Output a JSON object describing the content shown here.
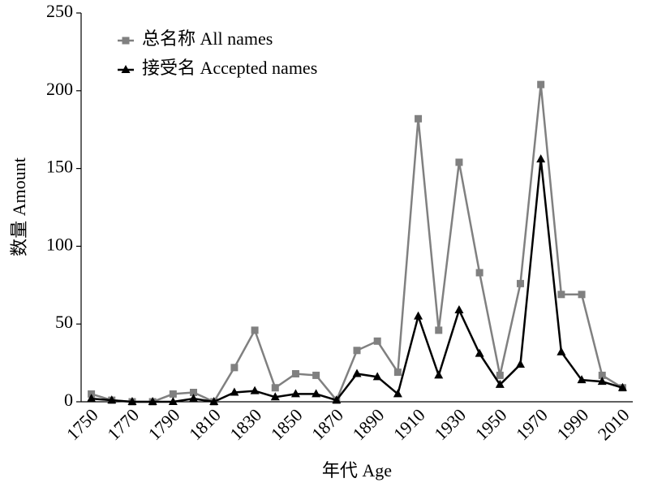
{
  "chart_data": {
    "type": "line",
    "x_label": "年代 Age",
    "y_label": "数量 Amount",
    "categories": [
      1750,
      null,
      1770,
      null,
      1790,
      null,
      1810,
      null,
      1830,
      null,
      1850,
      null,
      1870,
      null,
      1890,
      null,
      1910,
      null,
      1930,
      null,
      1950,
      null,
      1970,
      null,
      1990,
      null,
      2010
    ],
    "series": [
      {
        "name": "总名称 All names",
        "color": "#808080",
        "marker": "square",
        "values": [
          5,
          1,
          0,
          0,
          5,
          6,
          0,
          22,
          46,
          9,
          18,
          17,
          1,
          33,
          39,
          19,
          182,
          46,
          154,
          83,
          17,
          76,
          204,
          69,
          69,
          17,
          9
        ]
      },
      {
        "name": "接受名 Accepted names",
        "color": "#000000",
        "marker": "triangle",
        "values": [
          2,
          1,
          0,
          0,
          0,
          2,
          0,
          6,
          7,
          3,
          5,
          5,
          1,
          18,
          16,
          5,
          55,
          17,
          59,
          31,
          11,
          24,
          156,
          32,
          14,
          13,
          9
        ]
      }
    ],
    "ylim": [
      0,
      250
    ],
    "yticks": [
      0,
      50,
      100,
      150,
      200,
      250
    ],
    "legend": "top-left"
  }
}
